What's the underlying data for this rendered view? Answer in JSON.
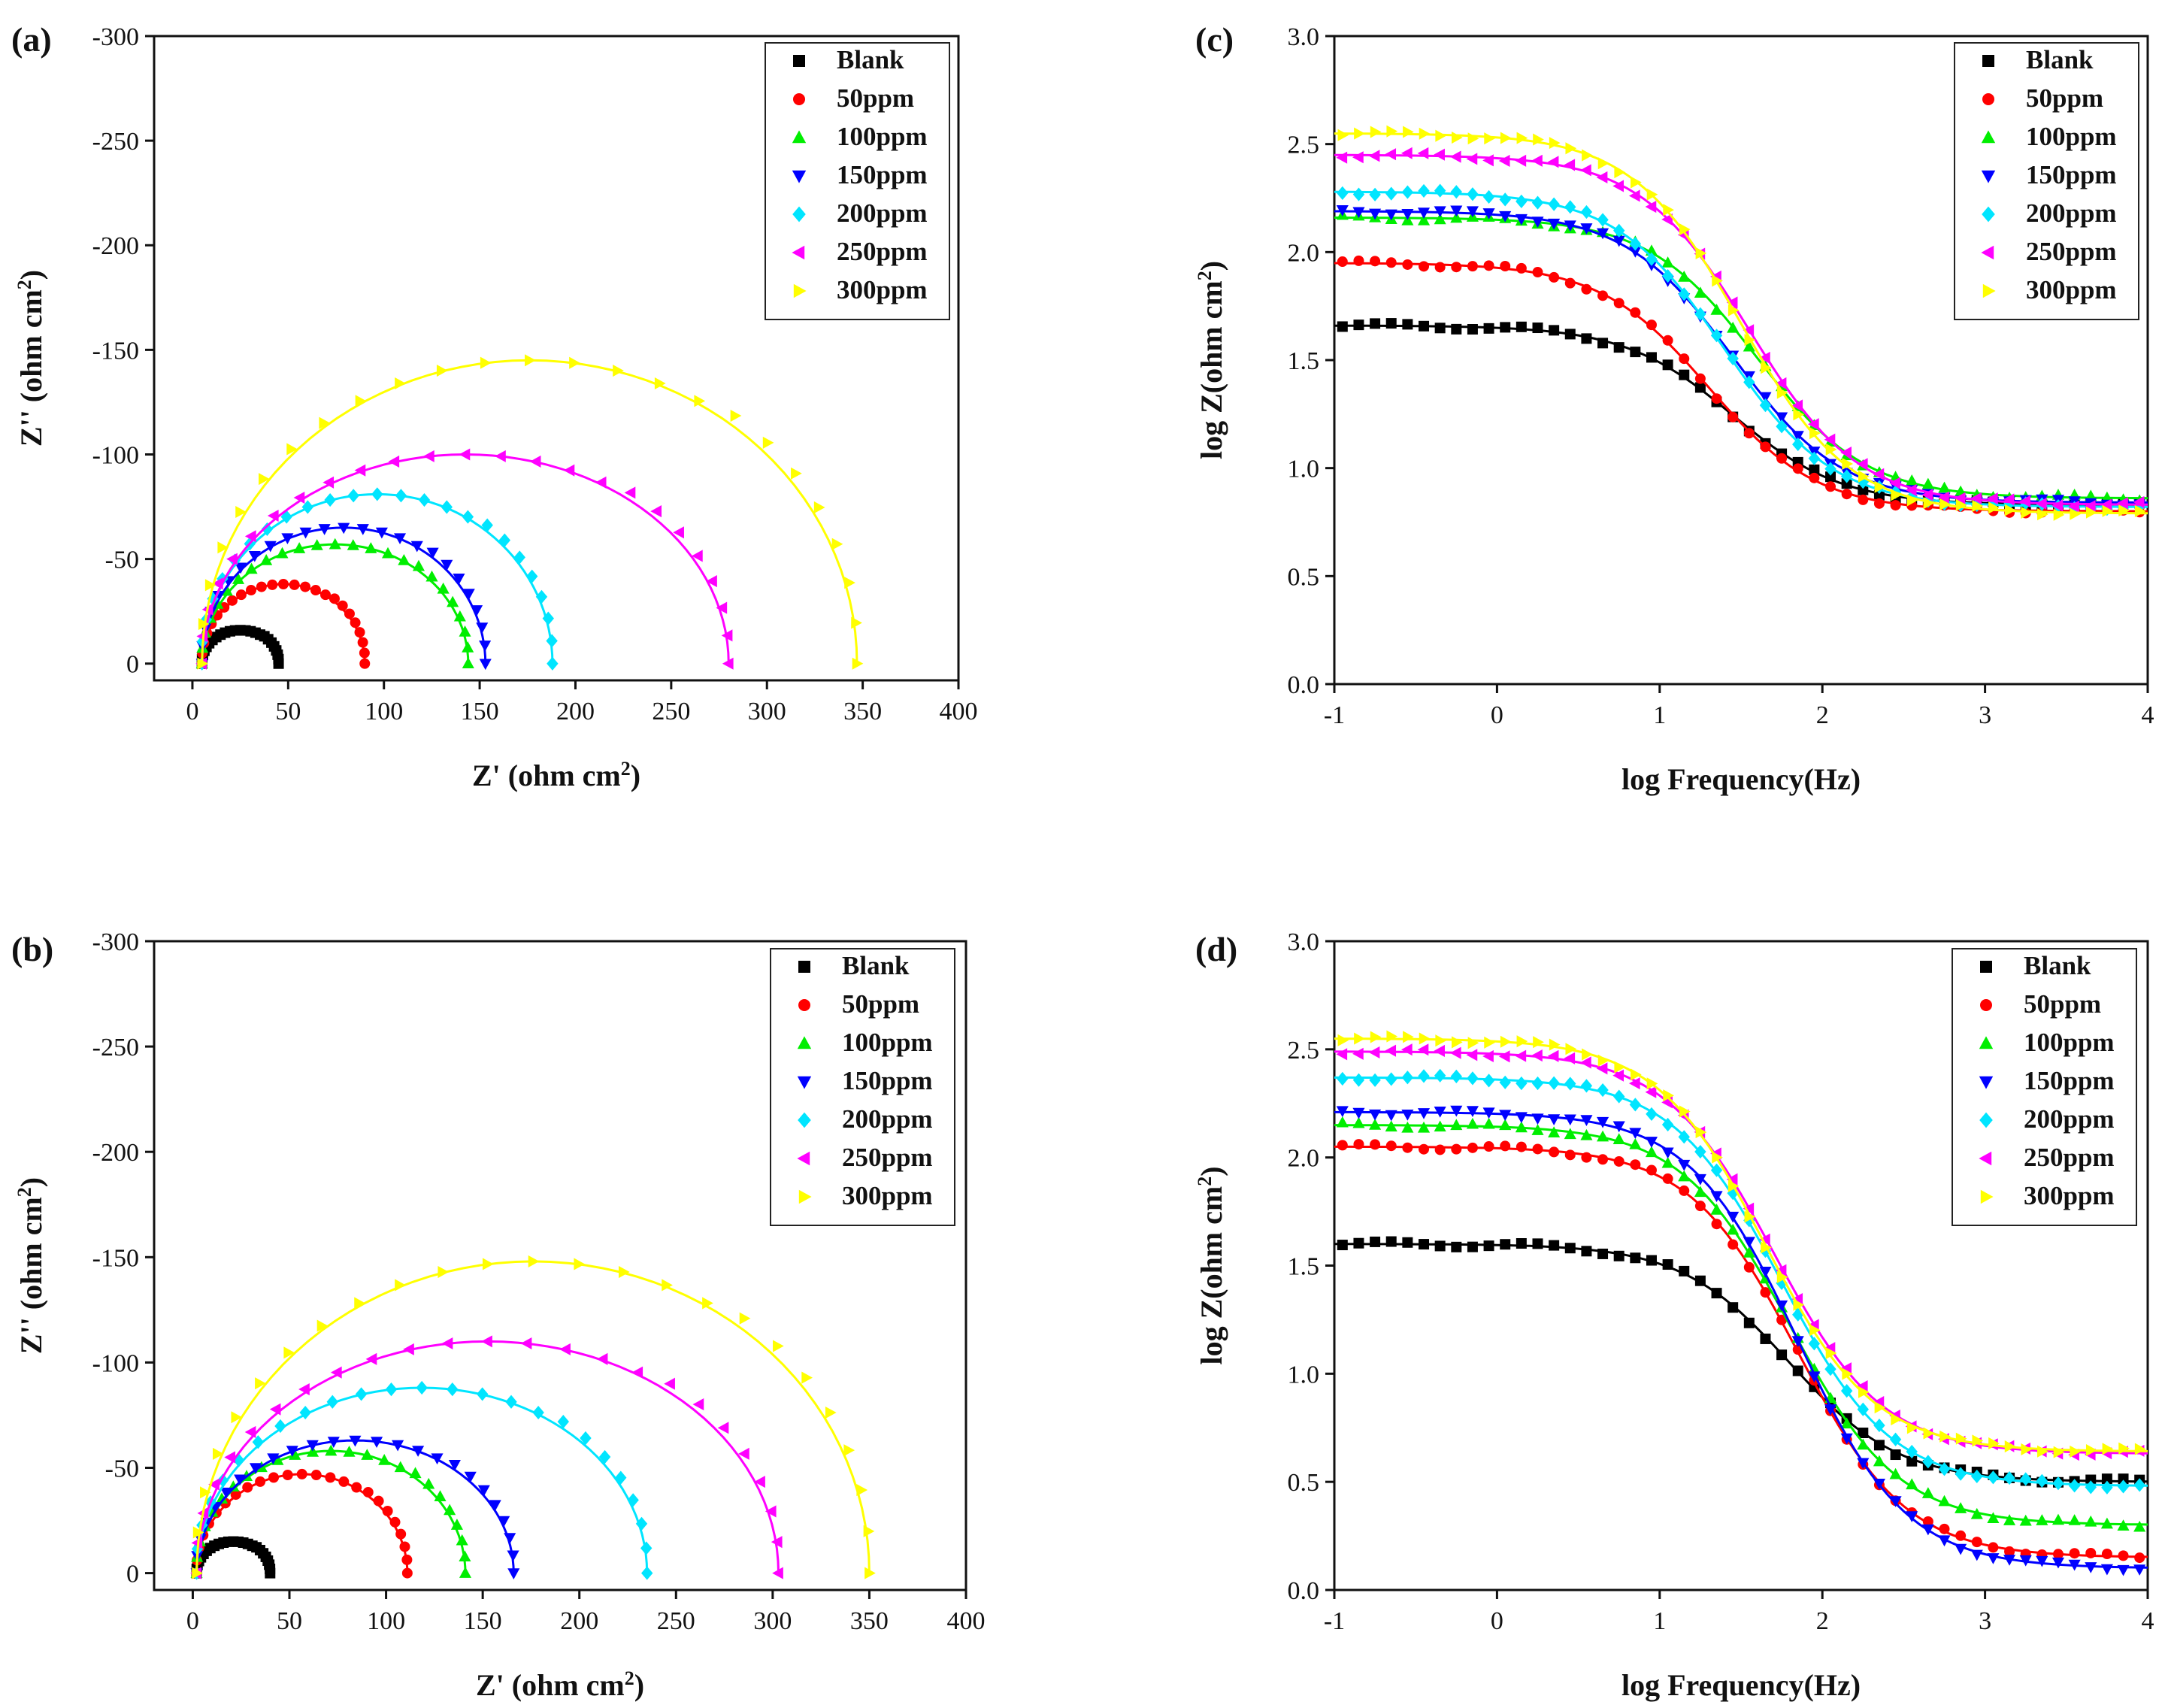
{
  "figure": {
    "legend_entries": [
      "Blank",
      "50ppm",
      "100ppm",
      "150ppm",
      "200ppm",
      "250ppm",
      "300ppm"
    ],
    "series_colors": [
      "#000000",
      "#ff0000",
      "#00ee00",
      "#0000ff",
      "#00e5ff",
      "#ff00ff",
      "#ffff00"
    ],
    "series_markers": [
      "square",
      "circle",
      "triangle-up",
      "triangle-down",
      "diamond",
      "triangle-left",
      "triangle-right"
    ]
  },
  "chart_data": [
    {
      "id": "a",
      "panel_label": "(a)",
      "type": "scatter",
      "title": "",
      "xlabel": "Z' (ohm cm",
      "xlabel_sup": "2",
      "xlabel_end": ")",
      "ylabel": "Z'' (ohm cm",
      "ylabel_sup": "2",
      "ylabel_end": ")",
      "xlim": [
        -20,
        400
      ],
      "ylim": [
        8,
        -300
      ],
      "xticks": [
        "0",
        "50",
        "100",
        "150",
        "200",
        "250",
        "300",
        "350",
        "400"
      ],
      "yticks": [
        "0",
        "-50",
        "-100",
        "-150",
        "-200",
        "-250",
        "-300"
      ],
      "legend_position": "top-right",
      "series": [
        {
          "name": "Blank",
          "x_start": 5,
          "x_end": 45,
          "peak_im": -16
        },
        {
          "name": "50ppm",
          "x_start": 5,
          "x_end": 90,
          "peak_im": -38
        },
        {
          "name": "100ppm",
          "x_start": 5,
          "x_end": 144,
          "peak_im": -57
        },
        {
          "name": "150ppm",
          "x_start": 5,
          "x_end": 153,
          "peak_im": -65
        },
        {
          "name": "200ppm",
          "x_start": 5,
          "x_end": 188,
          "peak_im": -81
        },
        {
          "name": "250ppm",
          "x_start": 5,
          "x_end": 280,
          "peak_im": -100
        },
        {
          "name": "300ppm",
          "x_start": 5,
          "x_end": 347,
          "peak_im": -145
        }
      ]
    },
    {
      "id": "b",
      "panel_label": "(b)",
      "type": "scatter",
      "title": "",
      "xlabel": "Z' (ohm cm",
      "xlabel_sup": "2",
      "xlabel_end": ")",
      "ylabel": "Z'' (ohm cm",
      "ylabel_sup": "2",
      "ylabel_end": ")",
      "xlim": [
        -20,
        400
      ],
      "ylim": [
        8,
        -300
      ],
      "xticks": [
        "0",
        "50",
        "100",
        "150",
        "200",
        "250",
        "300",
        "350",
        "400"
      ],
      "yticks": [
        "0",
        "-50",
        "-100",
        "-150",
        "-200",
        "-250",
        "-300"
      ],
      "legend_position": "top-right",
      "series": [
        {
          "name": "Blank",
          "x_start": 2,
          "x_end": 40,
          "peak_im": -15
        },
        {
          "name": "50ppm",
          "x_start": 2,
          "x_end": 111,
          "peak_im": -47
        },
        {
          "name": "100ppm",
          "x_start": 2,
          "x_end": 141,
          "peak_im": -58
        },
        {
          "name": "150ppm",
          "x_start": 2,
          "x_end": 166,
          "peak_im": -63
        },
        {
          "name": "200ppm",
          "x_start": 2,
          "x_end": 235,
          "peak_im": -88
        },
        {
          "name": "250ppm",
          "x_start": 2,
          "x_end": 303,
          "peak_im": -110
        },
        {
          "name": "300ppm",
          "x_start": 2,
          "x_end": 350,
          "peak_im": -148
        }
      ]
    },
    {
      "id": "c",
      "panel_label": "(c)",
      "type": "line",
      "title": "",
      "xlabel": "log Frequency(Hz)",
      "ylabel": "log Z(ohm cm",
      "ylabel_sup": "2",
      "ylabel_end": ")",
      "xlim": [
        -1,
        4
      ],
      "ylim": [
        0,
        3
      ],
      "xticks": [
        "-1",
        "0",
        "1",
        "2",
        "3",
        "4"
      ],
      "yticks": [
        "0.0",
        "0.5",
        "1.0",
        "1.5",
        "2.0",
        "2.5",
        "3.0"
      ],
      "legend_position": "top-right",
      "series": [
        {
          "name": "Blank",
          "low_freq": 1.66,
          "high_freq": 0.83,
          "mid_logf": 1.45
        },
        {
          "name": "50ppm",
          "low_freq": 1.95,
          "high_freq": 0.8,
          "mid_logf": 1.3
        },
        {
          "name": "100ppm",
          "low_freq": 2.16,
          "high_freq": 0.86,
          "mid_logf": 1.6
        },
        {
          "name": "150ppm",
          "low_freq": 2.19,
          "high_freq": 0.84,
          "mid_logf": 1.45
        },
        {
          "name": "200ppm",
          "low_freq": 2.28,
          "high_freq": 0.82,
          "mid_logf": 1.4
        },
        {
          "name": "250ppm",
          "low_freq": 2.45,
          "high_freq": 0.83,
          "mid_logf": 1.55
        },
        {
          "name": "300ppm",
          "low_freq": 2.55,
          "high_freq": 0.79,
          "mid_logf": 1.5
        }
      ]
    },
    {
      "id": "d",
      "panel_label": "(d)",
      "type": "line",
      "title": "",
      "xlabel": "log Frequency(Hz)",
      "ylabel": "log Z(ohm cm",
      "ylabel_sup": "2",
      "ylabel_end": ")",
      "xlim": [
        -1,
        4
      ],
      "ylim": [
        0,
        3
      ],
      "xticks": [
        "-1",
        "0",
        "1",
        "2",
        "3",
        "4"
      ],
      "yticks": [
        "0.0",
        "0.5",
        "1.0",
        "1.5",
        "2.0",
        "2.5",
        "3.0"
      ],
      "legend_position": "top-right",
      "series": [
        {
          "name": "Blank",
          "low_freq": 1.6,
          "high_freq": 0.5,
          "mid_logf": 1.8
        },
        {
          "name": "50ppm",
          "low_freq": 2.05,
          "high_freq": 0.15,
          "mid_logf": 1.85
        },
        {
          "name": "100ppm",
          "low_freq": 2.15,
          "high_freq": 0.3,
          "mid_logf": 1.8
        },
        {
          "name": "150ppm",
          "low_freq": 2.21,
          "high_freq": 0.1,
          "mid_logf": 1.85
        },
        {
          "name": "200ppm",
          "low_freq": 2.37,
          "high_freq": 0.48,
          "mid_logf": 1.75
        },
        {
          "name": "250ppm",
          "low_freq": 2.49,
          "high_freq": 0.63,
          "mid_logf": 1.7
        },
        {
          "name": "300ppm",
          "low_freq": 2.55,
          "high_freq": 0.64,
          "mid_logf": 1.65
        }
      ]
    }
  ]
}
